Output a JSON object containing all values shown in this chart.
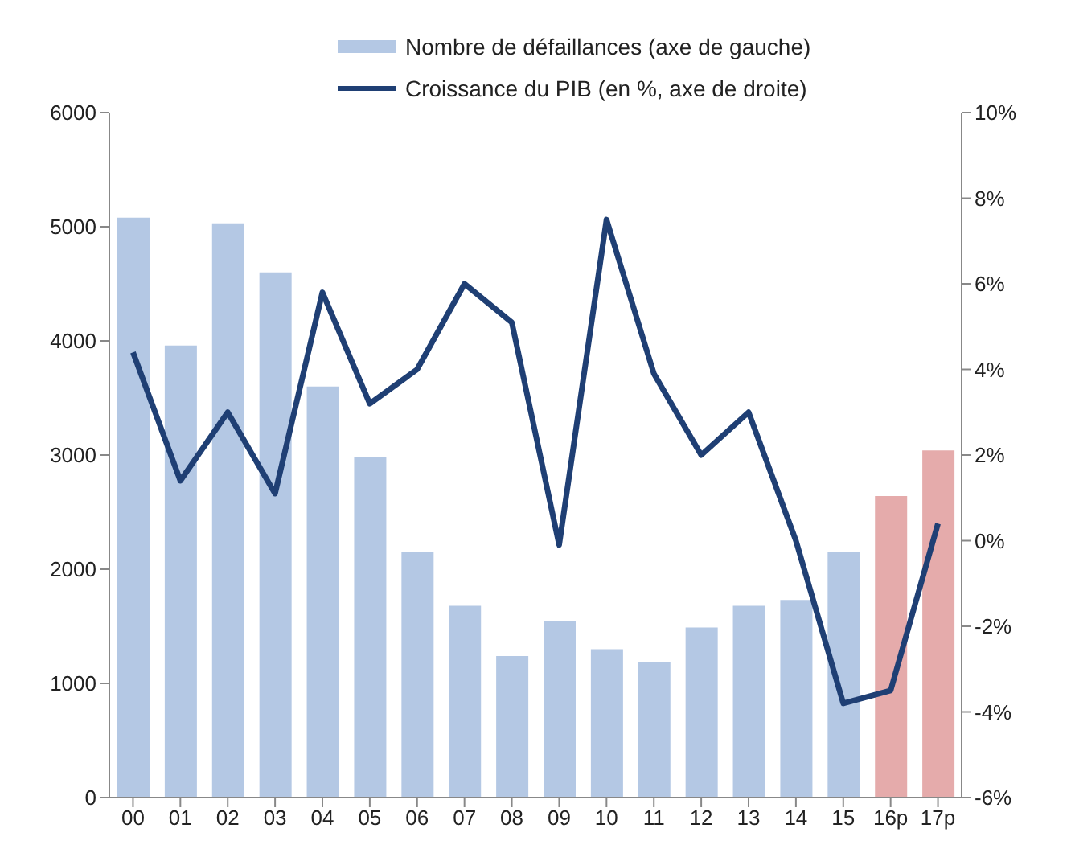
{
  "chart_data": {
    "type": "bar",
    "categories": [
      "00",
      "01",
      "02",
      "03",
      "04",
      "05",
      "06",
      "07",
      "08",
      "09",
      "10",
      "11",
      "12",
      "13",
      "14",
      "15",
      "16p",
      "17p"
    ],
    "series": [
      {
        "name": "Nombre de défaillances (axe de gauche)",
        "color": "#b4c8e4",
        "colors": [
          "#b4c8e4",
          "#b4c8e4",
          "#b4c8e4",
          "#b4c8e4",
          "#b4c8e4",
          "#b4c8e4",
          "#b4c8e4",
          "#b4c8e4",
          "#b4c8e4",
          "#b4c8e4",
          "#b4c8e4",
          "#b4c8e4",
          "#b4c8e4",
          "#b4c8e4",
          "#b4c8e4",
          "#b4c8e4",
          "#e5abab",
          "#e5abab"
        ],
        "values": [
          5080,
          3960,
          5030,
          4600,
          3600,
          2980,
          2150,
          1680,
          1240,
          1550,
          1300,
          1190,
          1490,
          1680,
          1730,
          2150,
          2640,
          3040
        ]
      },
      {
        "name": "Croissance du PIB (en %, axe de droite)",
        "type": "line",
        "axis": "y2",
        "color": "#1f3f74",
        "values": [
          4.4,
          1.4,
          3.0,
          1.1,
          5.8,
          3.2,
          4.0,
          6.0,
          5.1,
          -0.1,
          7.5,
          3.9,
          2.0,
          3.0,
          0.0,
          -3.8,
          -3.5,
          0.4
        ]
      }
    ],
    "ylim": [
      0,
      6000
    ],
    "yticks": [
      0,
      1000,
      2000,
      3000,
      4000,
      5000,
      6000
    ],
    "y2lim": [
      -6,
      10
    ],
    "y2ticks": [
      {
        "value": -6,
        "label": "-6%"
      },
      {
        "value": -4,
        "label": "-4%"
      },
      {
        "value": -2,
        "label": "-2%"
      },
      {
        "value": 0,
        "label": "0%"
      },
      {
        "value": 2,
        "label": "2%"
      },
      {
        "value": 4,
        "label": "4%"
      },
      {
        "value": 6,
        "label": "6%"
      },
      {
        "value": 8,
        "label": "8%"
      },
      {
        "value": 10,
        "label": "10%"
      }
    ],
    "grid": false,
    "legend": "top",
    "marker": "none",
    "line_style": "solid"
  }
}
